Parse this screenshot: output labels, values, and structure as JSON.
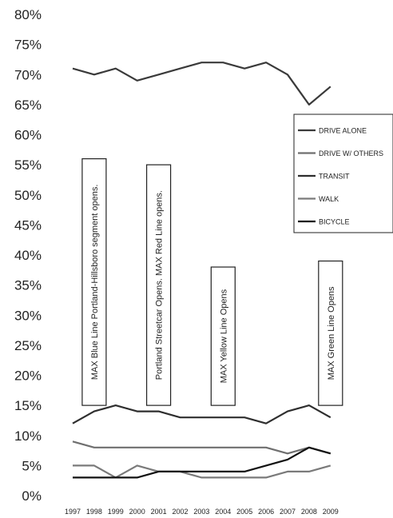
{
  "chart_data": {
    "type": "line",
    "title": "",
    "xlabel": "",
    "ylabel": "",
    "x": [
      "1997",
      "1998",
      "1999",
      "2000",
      "2001",
      "2002",
      "2003",
      "2004",
      "2005",
      "2006",
      "2007",
      "2008",
      "2009"
    ],
    "ylim": [
      0,
      80
    ],
    "yticks": [
      "0%",
      "5%",
      "10%",
      "15%",
      "20%",
      "25%",
      "30%",
      "35%",
      "40%",
      "45%",
      "50%",
      "55%",
      "60%",
      "65%",
      "70%",
      "75%",
      "80%"
    ],
    "grid": false,
    "legend_position": "right",
    "series": [
      {
        "name": "DRIVE ALONE",
        "color": "#3a3a3a",
        "values": [
          71,
          70,
          71,
          69,
          70,
          71,
          72,
          72,
          71,
          72,
          70,
          65,
          68
        ]
      },
      {
        "name": "DRIVE W/ OTHERS",
        "color": "#6f6f6f",
        "values": [
          9,
          8,
          8,
          8,
          8,
          8,
          8,
          8,
          8,
          8,
          7,
          8,
          7
        ]
      },
      {
        "name": "TRANSIT",
        "color": "#2e2e2e",
        "values": [
          12,
          14,
          15,
          14,
          14,
          13,
          13,
          13,
          13,
          12,
          14,
          15,
          13
        ]
      },
      {
        "name": "WALK",
        "color": "#7a7a7a",
        "values": [
          5,
          5,
          3,
          5,
          4,
          4,
          3,
          3,
          3,
          3,
          4,
          4,
          5
        ]
      },
      {
        "name": "BICYCLE",
        "color": "#111111",
        "values": [
          3,
          3,
          3,
          3,
          4,
          4,
          4,
          4,
          4,
          5,
          6,
          8,
          7
        ]
      }
    ],
    "annotations": [
      {
        "text": "MAX Blue Line Portland-Hillsboro segment opens.",
        "x": "1998",
        "y_top": 56,
        "y_bottom": 15
      },
      {
        "text": "Portland Streetcar Opens.  MAX Red Line opens.",
        "x": "2001",
        "y_top": 55,
        "y_bottom": 15
      },
      {
        "text": "MAX Yellow Line Opens",
        "x": "2004",
        "y_top": 38,
        "y_bottom": 15
      },
      {
        "text": "MAX Green Line Opens",
        "x": "2009",
        "y_top": 39,
        "y_bottom": 15
      }
    ]
  }
}
